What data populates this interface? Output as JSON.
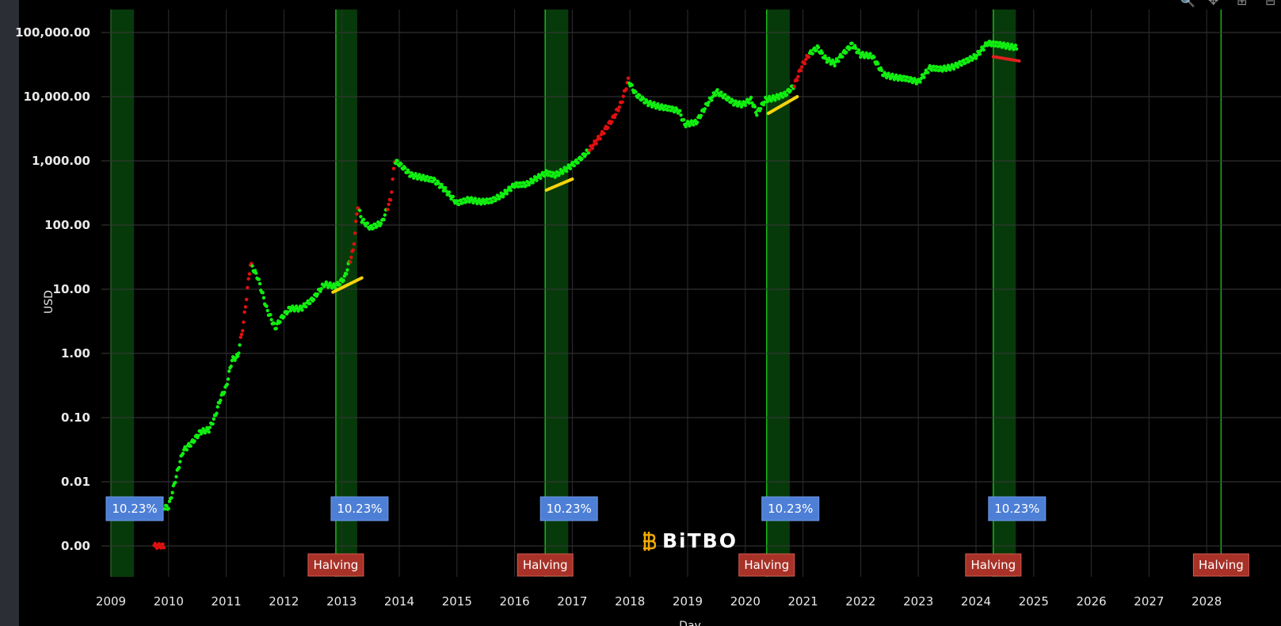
{
  "chart_data": {
    "type": "scatter",
    "title": "",
    "ylabel": "USD",
    "xlabel": "Day",
    "y_scale": "log",
    "y_ticks": [
      "100,000.00",
      "10,000.00",
      "1,000.00",
      "100.00",
      "10.00",
      "1.00",
      "0.10",
      "0.01",
      "0.00"
    ],
    "x_ticks": [
      "2009",
      "2010",
      "2011",
      "2012",
      "2013",
      "2014",
      "2015",
      "2016",
      "2017",
      "2018",
      "2019",
      "2020",
      "2021",
      "2022",
      "2023",
      "2024",
      "2025",
      "2026",
      "2027",
      "2028"
    ],
    "x_range": [
      2009.0,
      2028.6
    ],
    "halving_periods": [
      {
        "start": 2009.0,
        "end": 2009.4,
        "pct_label": "10.23%",
        "halving_label": ""
      },
      {
        "start": 2012.9,
        "end": 2013.27,
        "pct_label": "10.23%",
        "halving_label": "Halving"
      },
      {
        "start": 2016.53,
        "end": 2016.93,
        "pct_label": "10.23%",
        "halving_label": "Halving"
      },
      {
        "start": 2020.37,
        "end": 2020.77,
        "pct_label": "10.23%",
        "halving_label": "Halving"
      },
      {
        "start": 2024.3,
        "end": 2024.69,
        "pct_label": "10.23%",
        "halving_label": "Halving"
      },
      {
        "start": 2028.25,
        "end": 2028.25,
        "pct_label": "",
        "halving_label": "Halving"
      }
    ],
    "price_series": [
      [
        2009.75,
        0.0
      ],
      [
        2009.85,
        0.0
      ],
      [
        2010.0,
        0.004
      ],
      [
        2010.15,
        0.014
      ],
      [
        2010.25,
        0.03
      ],
      [
        2010.4,
        0.04
      ],
      [
        2010.55,
        0.06
      ],
      [
        2010.7,
        0.065
      ],
      [
        2010.8,
        0.1
      ],
      [
        2010.9,
        0.2
      ],
      [
        2011.0,
        0.3
      ],
      [
        2011.1,
        0.8
      ],
      [
        2011.2,
        0.9
      ],
      [
        2011.3,
        3
      ],
      [
        2011.42,
        25
      ],
      [
        2011.55,
        15
      ],
      [
        2011.7,
        5
      ],
      [
        2011.85,
        2.5
      ],
      [
        2011.95,
        3.5
      ],
      [
        2012.1,
        5
      ],
      [
        2012.3,
        5
      ],
      [
        2012.5,
        7
      ],
      [
        2012.7,
        12
      ],
      [
        2012.9,
        11
      ],
      [
        2013.05,
        15
      ],
      [
        2013.2,
        40
      ],
      [
        2013.28,
        200
      ],
      [
        2013.35,
        120
      ],
      [
        2013.5,
        90
      ],
      [
        2013.7,
        110
      ],
      [
        2013.85,
        250
      ],
      [
        2013.92,
        1000
      ],
      [
        2014.0,
        900
      ],
      [
        2014.2,
        600
      ],
      [
        2014.4,
        550
      ],
      [
        2014.6,
        500
      ],
      [
        2014.8,
        350
      ],
      [
        2015.0,
        220
      ],
      [
        2015.2,
        250
      ],
      [
        2015.4,
        230
      ],
      [
        2015.6,
        240
      ],
      [
        2015.8,
        300
      ],
      [
        2016.0,
        420
      ],
      [
        2016.2,
        430
      ],
      [
        2016.4,
        550
      ],
      [
        2016.55,
        650
      ],
      [
        2016.7,
        600
      ],
      [
        2016.9,
        750
      ],
      [
        2017.1,
        1000
      ],
      [
        2017.3,
        1500
      ],
      [
        2017.5,
        2500
      ],
      [
        2017.7,
        4500
      ],
      [
        2017.85,
        8000
      ],
      [
        2017.97,
        18000
      ],
      [
        2018.1,
        11000
      ],
      [
        2018.3,
        8000
      ],
      [
        2018.5,
        7000
      ],
      [
        2018.7,
        6500
      ],
      [
        2018.85,
        6000
      ],
      [
        2018.95,
        3700
      ],
      [
        2019.15,
        4000
      ],
      [
        2019.35,
        8000
      ],
      [
        2019.5,
        12000
      ],
      [
        2019.65,
        10000
      ],
      [
        2019.8,
        8000
      ],
      [
        2019.95,
        7500
      ],
      [
        2020.1,
        9000
      ],
      [
        2020.2,
        5500
      ],
      [
        2020.35,
        9000
      ],
      [
        2020.5,
        9500
      ],
      [
        2020.7,
        11000
      ],
      [
        2020.85,
        15000
      ],
      [
        2020.98,
        30000
      ],
      [
        2021.1,
        45000
      ],
      [
        2021.25,
        58000
      ],
      [
        2021.4,
        38000
      ],
      [
        2021.55,
        33000
      ],
      [
        2021.7,
        47000
      ],
      [
        2021.85,
        65000
      ],
      [
        2022.0,
        45000
      ],
      [
        2022.2,
        43000
      ],
      [
        2022.4,
        22000
      ],
      [
        2022.6,
        20000
      ],
      [
        2022.8,
        19000
      ],
      [
        2023.0,
        17000
      ],
      [
        2023.2,
        28000
      ],
      [
        2023.4,
        27000
      ],
      [
        2023.6,
        29000
      ],
      [
        2023.8,
        35000
      ],
      [
        2024.0,
        43000
      ],
      [
        2024.2,
        68000
      ],
      [
        2024.4,
        65000
      ],
      [
        2024.6,
        60000
      ],
      [
        2024.72,
        58000
      ]
    ],
    "red_segments": [
      [
        2011.25,
        2011.45
      ],
      [
        2013.15,
        2013.3
      ],
      [
        2013.8,
        2013.92
      ],
      [
        2017.3,
        2017.97
      ],
      [
        2020.85,
        2021.1
      ]
    ],
    "trend_lines": [
      {
        "color": "#f5d50a",
        "x": [
          2012.85,
          2013.35
        ],
        "y": [
          9,
          15
        ]
      },
      {
        "color": "#f5d50a",
        "x": [
          2016.55,
          2017.0
        ],
        "y": [
          350,
          520
        ]
      },
      {
        "color": "#f5d50a",
        "x": [
          2020.4,
          2020.9
        ],
        "y": [
          5500,
          10000
        ]
      },
      {
        "color": "#e02020",
        "x": [
          2024.3,
          2024.75
        ],
        "y": [
          42000,
          36000
        ]
      }
    ],
    "grid": true
  },
  "logo": {
    "text": "BiTBO"
  },
  "colors": {
    "price": "#11ee11",
    "price_hot": "#e01010",
    "halving_band": "#073a0a",
    "halving_line": "#19b619",
    "pct_box": "#4d7fd6",
    "halving_box": "#a83228"
  }
}
